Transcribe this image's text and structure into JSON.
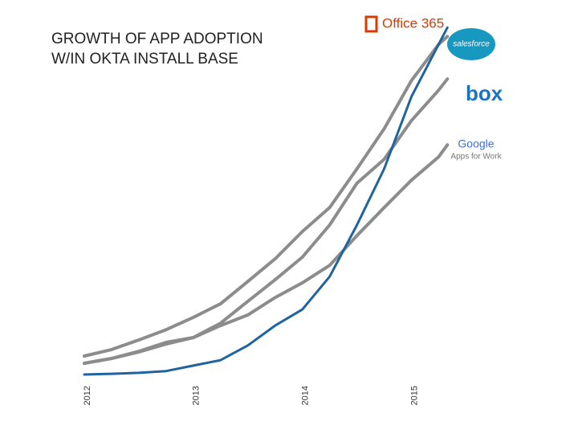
{
  "chart_data": {
    "type": "line",
    "title": [
      "GROWTH OF APP ADOPTION",
      "W/IN OKTA INSTALL BASE"
    ],
    "x": [
      2012,
      2012.25,
      2012.5,
      2012.75,
      2013,
      2013.25,
      2013.5,
      2013.75,
      2014,
      2014.25,
      2014.5,
      2014.75,
      2015,
      2015.25,
      2015.33
    ],
    "xlim": [
      2012,
      2015.35
    ],
    "xticks": [
      2012,
      2013,
      2014,
      2015
    ],
    "ylim": [
      0,
      105
    ],
    "grid": false,
    "series": [
      {
        "name": "Google",
        "name_line2": "Apps for Work",
        "color": "#8c8c8c",
        "values": [
          3.3,
          4.7,
          6.6,
          8.9,
          10.8,
          14.3,
          17.4,
          22.5,
          26.8,
          31.9,
          40.6,
          48.8,
          56.8,
          63.6,
          67.1
        ]
      },
      {
        "name": "box",
        "color": "#8c8c8c",
        "values": [
          3.3,
          4.7,
          6.8,
          9.4,
          10.8,
          15.0,
          21.4,
          27.7,
          34.3,
          43.7,
          55.9,
          62.9,
          74.2,
          83.1,
          86.4
        ]
      },
      {
        "name": "salesforce",
        "color": "#8c8c8c",
        "values": [
          5.4,
          7.3,
          10.1,
          13.1,
          16.7,
          20.7,
          27.2,
          33.8,
          41.8,
          48.8,
          60.1,
          71.8,
          85.9,
          96.5,
          98.8
        ]
      },
      {
        "name": "Office 365",
        "color": "#1f63a0",
        "values": [
          0,
          0.2,
          0.5,
          1,
          2.6,
          4.2,
          8.5,
          14.3,
          19,
          28.6,
          43.7,
          60.1,
          81.2,
          96.5,
          101.4
        ]
      }
    ]
  }
}
